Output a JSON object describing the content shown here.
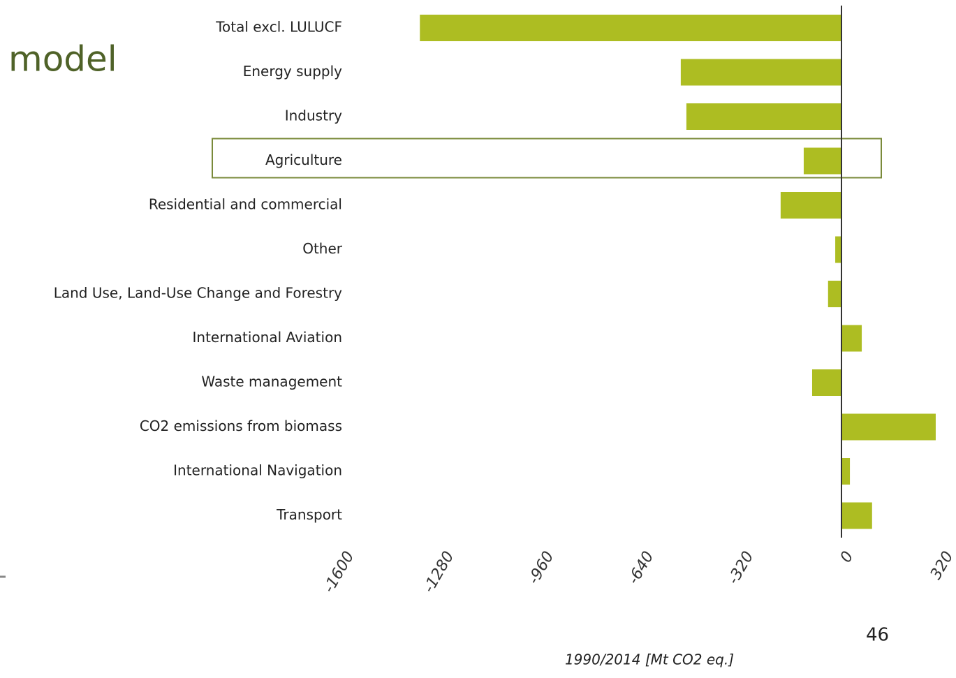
{
  "slide_title": "model",
  "page_number": "46",
  "chart_data": {
    "type": "bar",
    "orientation": "horizontal",
    "categories": [
      "Total excl. LULUCF",
      "Energy supply",
      "Industry",
      "Agriculture",
      "Residential and commercial",
      "Other",
      "Land Use, Land-Use Change and Forestry",
      "International Aviation",
      "Waste management",
      "CO2 emissions from biomass",
      "International Navigation",
      "Transport"
    ],
    "values": [
      -1351,
      -515,
      -497,
      -121,
      -195,
      -20,
      -43,
      65,
      -94,
      302,
      27,
      98
    ],
    "color": "#adbd22",
    "xlabel": "1990/2014 [Mt CO2 eq.]",
    "xlim": [
      -1600,
      320
    ],
    "xticks": [
      -1600,
      -1280,
      -960,
      -640,
      -320,
      0,
      320
    ],
    "highlight_index": 3
  }
}
